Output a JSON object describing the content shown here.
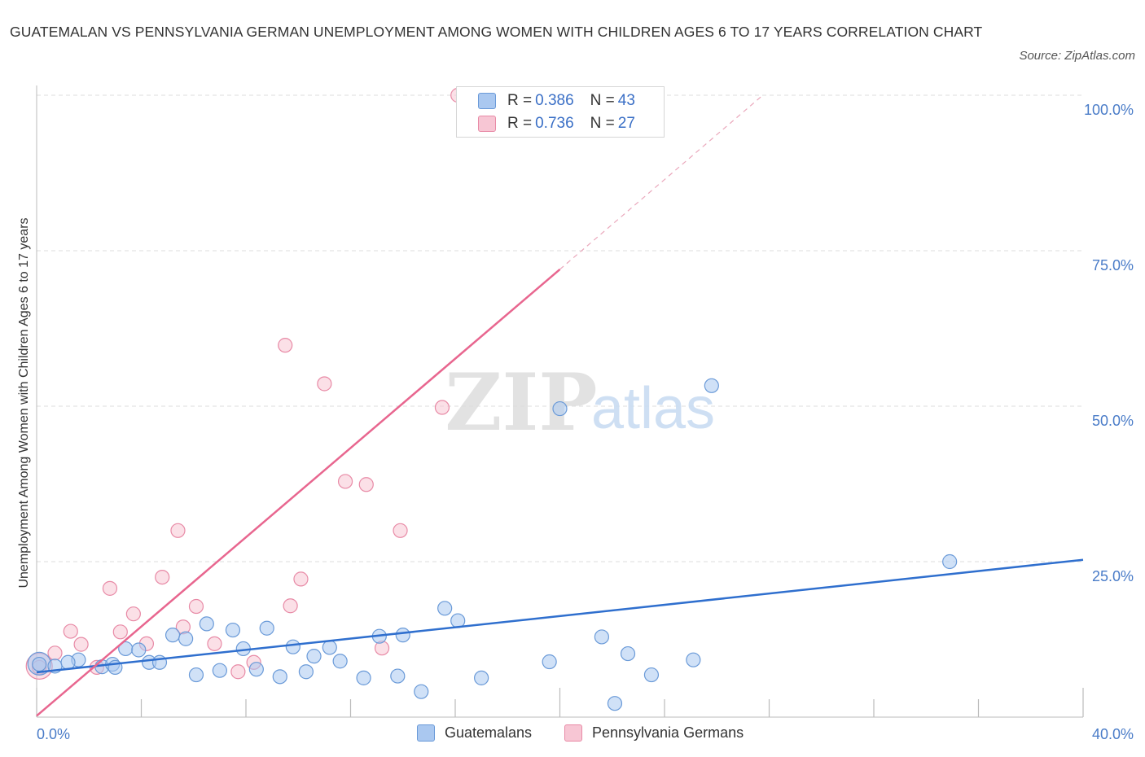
{
  "title": "GUATEMALAN VS PENNSYLVANIA GERMAN UNEMPLOYMENT AMONG WOMEN WITH CHILDREN AGES 6 TO 17 YEARS CORRELATION CHART",
  "source": "Source: ZipAtlas.com",
  "watermark": {
    "zip": "ZIP",
    "atlas": "atlas"
  },
  "colors": {
    "blue_fill": "#aac8f0",
    "blue_stroke": "#6a9ad8",
    "blue_line": "#2f6fce",
    "pink_fill": "#f7c6d4",
    "pink_stroke": "#e88aa6",
    "pink_line": "#e8668f",
    "tick_text": "#4a7cc8",
    "grid": "#dddddd"
  },
  "legend_stats": [
    {
      "r_label": "R =",
      "r_value": "0.386",
      "n_label": "N =",
      "n_value": "43",
      "color": "#aac8f0",
      "border": "#6a9ad8"
    },
    {
      "r_label": "R =",
      "r_value": "0.736",
      "n_label": "N =",
      "n_value": "27",
      "color": "#f7c6d4",
      "border": "#e88aa6"
    }
  ],
  "chart_data": {
    "type": "scatter",
    "title": "GUATEMALAN VS PENNSYLVANIA GERMAN UNEMPLOYMENT AMONG WOMEN WITH CHILDREN AGES 6 TO 17 YEARS CORRELATION CHART",
    "xlabel": "",
    "ylabel": "Unemployment Among Women with Children Ages 6 to 17 years",
    "xlim": [
      0,
      40
    ],
    "ylim": [
      0,
      100
    ],
    "x_tick_labels": [
      "0.0%",
      "40.0%"
    ],
    "y_tick_labels": [
      "25.0%",
      "50.0%",
      "75.0%",
      "100.0%"
    ],
    "y_ticks": [
      25,
      50,
      75,
      100
    ],
    "grid": true,
    "legend_position": "bottom",
    "series": [
      {
        "name": "Guatemalans",
        "color": "#aac8f0",
        "points": [
          [
            0.1,
            8.5
          ],
          [
            0.7,
            8.2
          ],
          [
            1.6,
            9.2
          ],
          [
            2.5,
            8.1
          ],
          [
            2.9,
            8.5
          ],
          [
            3.0,
            8.0
          ],
          [
            3.4,
            11.0
          ],
          [
            3.9,
            10.8
          ],
          [
            4.3,
            8.8
          ],
          [
            4.7,
            8.8
          ],
          [
            5.2,
            13.2
          ],
          [
            5.7,
            12.6
          ],
          [
            6.1,
            6.8
          ],
          [
            6.5,
            15.0
          ],
          [
            7.0,
            7.5
          ],
          [
            7.5,
            14.0
          ],
          [
            7.9,
            11.0
          ],
          [
            8.4,
            7.7
          ],
          [
            8.8,
            14.3
          ],
          [
            9.3,
            6.5
          ],
          [
            9.8,
            11.3
          ],
          [
            10.3,
            7.3
          ],
          [
            10.6,
            9.8
          ],
          [
            11.2,
            11.2
          ],
          [
            11.6,
            9.0
          ],
          [
            12.5,
            6.3
          ],
          [
            13.1,
            13.0
          ],
          [
            13.8,
            6.6
          ],
          [
            14.0,
            13.2
          ],
          [
            14.7,
            4.1
          ],
          [
            15.6,
            17.5
          ],
          [
            16.1,
            15.5
          ],
          [
            17.0,
            6.3
          ],
          [
            19.6,
            8.9
          ],
          [
            20.0,
            49.6
          ],
          [
            21.6,
            12.9
          ],
          [
            22.1,
            2.2
          ],
          [
            22.6,
            10.2
          ],
          [
            23.5,
            6.8
          ],
          [
            25.1,
            9.2
          ],
          [
            25.8,
            53.3
          ],
          [
            34.9,
            25.0
          ],
          [
            1.2,
            8.8
          ]
        ]
      },
      {
        "name": "Pennsylvania Germans",
        "color": "#f7c6d4",
        "points": [
          [
            0.1,
            8.0
          ],
          [
            0.7,
            10.3
          ],
          [
            1.3,
            13.8
          ],
          [
            1.7,
            11.7
          ],
          [
            2.3,
            8.0
          ],
          [
            2.8,
            20.7
          ],
          [
            3.2,
            13.7
          ],
          [
            3.7,
            16.6
          ],
          [
            4.2,
            11.8
          ],
          [
            4.8,
            22.5
          ],
          [
            5.4,
            30.0
          ],
          [
            5.6,
            14.5
          ],
          [
            6.1,
            17.8
          ],
          [
            6.8,
            11.8
          ],
          [
            7.7,
            7.3
          ],
          [
            8.3,
            8.8
          ],
          [
            9.5,
            59.8
          ],
          [
            9.7,
            17.9
          ],
          [
            10.1,
            22.2
          ],
          [
            11.0,
            53.6
          ],
          [
            11.8,
            37.9
          ],
          [
            12.6,
            37.4
          ],
          [
            13.2,
            11.1
          ],
          [
            13.9,
            30.0
          ],
          [
            15.5,
            49.8
          ],
          [
            16.1,
            100.0
          ],
          [
            18.9,
            100.0
          ]
        ]
      }
    ],
    "trend_lines": [
      {
        "series": "Guatemalans",
        "x": [
          0,
          40
        ],
        "y": [
          7.2,
          25.3
        ]
      },
      {
        "series": "Pennsylvania Germans",
        "x": [
          0,
          20
        ],
        "y": [
          0.2,
          72.0
        ],
        "dashed_extension": {
          "x": [
            20,
            27.7
          ],
          "y": [
            72.0,
            99.8
          ]
        }
      }
    ]
  },
  "bottom_legend": [
    {
      "label": "Guatemalans",
      "color": "#aac8f0",
      "border": "#6a9ad8"
    },
    {
      "label": "Pennsylvania Germans",
      "color": "#f7c6d4",
      "border": "#e88aa6"
    }
  ]
}
